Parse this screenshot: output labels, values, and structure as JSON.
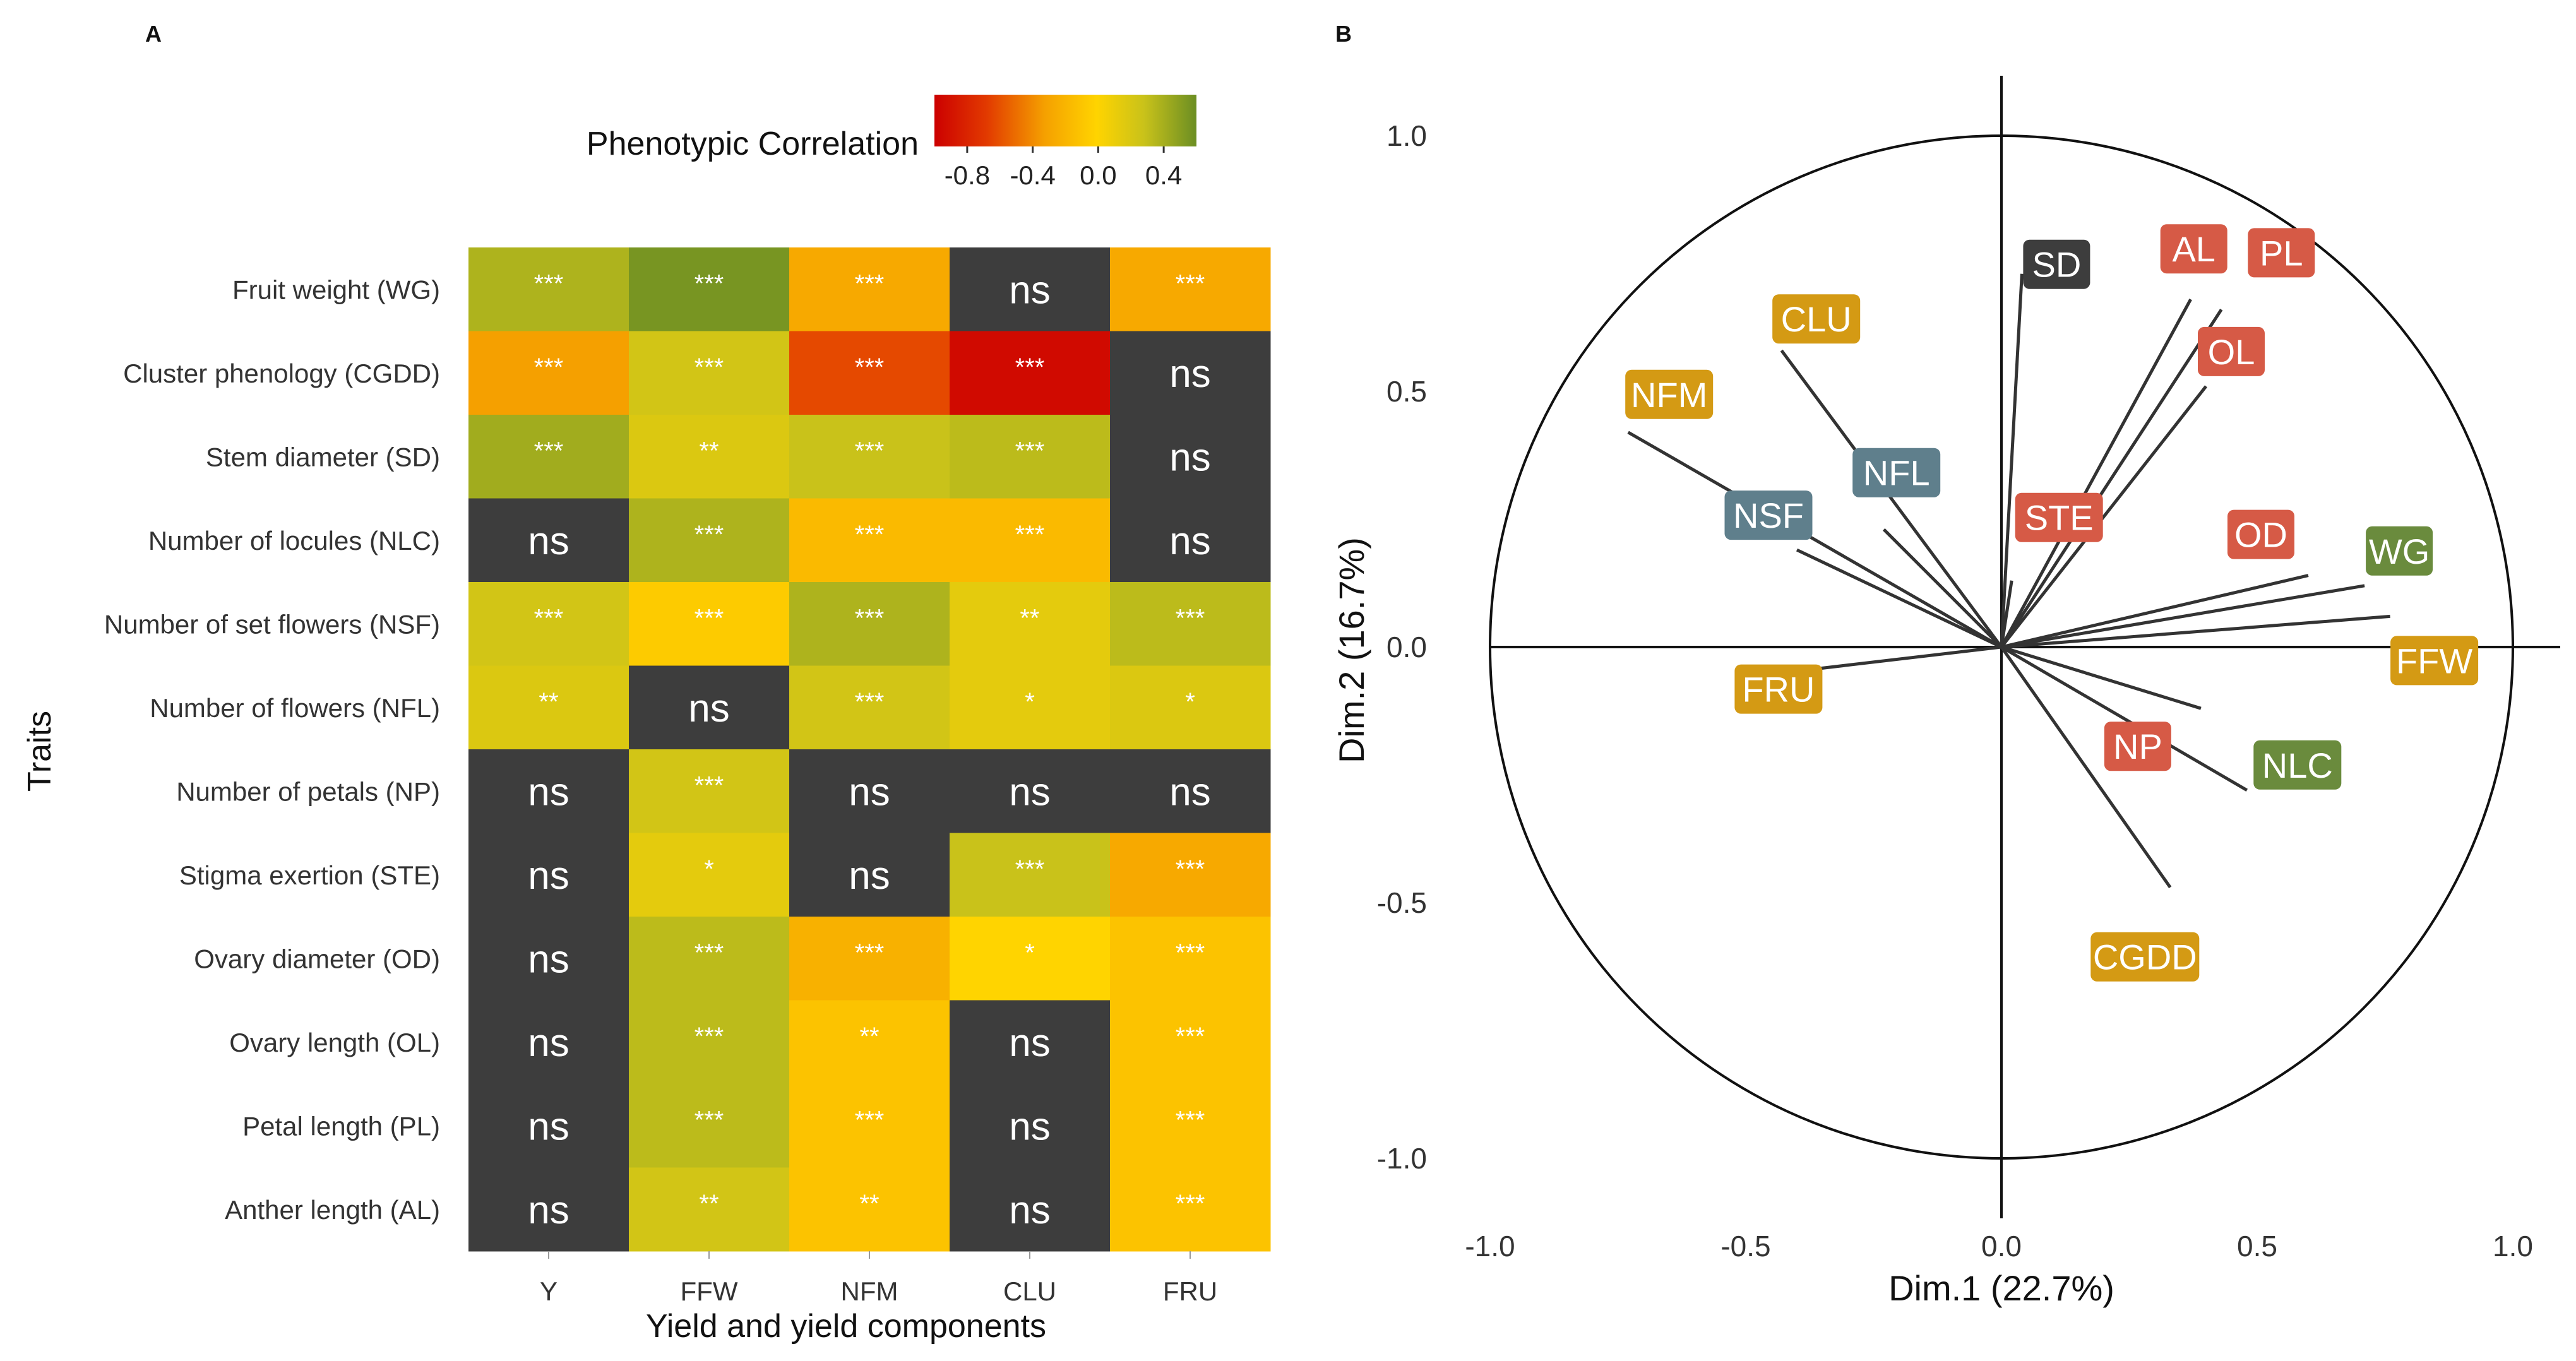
{
  "colors": {
    "ns_cell": "#3d3d3d",
    "scale_low": "#cc0000",
    "scale_mid": "#ffd700",
    "scale_high": "#6b8e23",
    "red_group": "#d65a46",
    "gold_group": "#d49a14",
    "slate_group": "#5f7f8c",
    "olive_group": "#6a8b3d",
    "dark_group": "#3d3d3d"
  },
  "chart_data": [
    {
      "type": "heatmap",
      "panel_label": "A",
      "title": "Phenotypic Correlation",
      "xlabel": "Yield and yield components",
      "ylabel": "Traits",
      "legend": {
        "title": "Phenotypic Correlation",
        "ticks": [
          "-0.8",
          "-0.4",
          "0.0",
          "0.4"
        ],
        "range": [
          -1.0,
          0.6
        ],
        "position": "top"
      },
      "columns": [
        "Y",
        "FFW",
        "NFM",
        "CLU",
        "FRU"
      ],
      "rows": [
        {
          "label": "Fruit weight (WG)",
          "values": [
            0.35,
            0.55,
            -0.3,
            null,
            -0.3
          ],
          "marks": [
            "***",
            "***",
            "***",
            "ns",
            "***"
          ]
        },
        {
          "label": "Cluster phenology (CGDD)",
          "values": [
            -0.35,
            0.2,
            -0.65,
            -0.95,
            null
          ],
          "marks": [
            "***",
            "***",
            "***",
            "***",
            "ns"
          ]
        },
        {
          "label": "Stem diameter (SD)",
          "values": [
            0.4,
            0.15,
            0.25,
            0.3,
            null
          ],
          "marks": [
            "***",
            "**",
            "***",
            "***",
            "ns"
          ]
        },
        {
          "label": "Number of locules (NLC)",
          "values": [
            null,
            0.35,
            -0.2,
            -0.2,
            null
          ],
          "marks": [
            "ns",
            "***",
            "***",
            "***",
            "ns"
          ]
        },
        {
          "label": "Number of set flowers (NSF)",
          "values": [
            0.2,
            -0.1,
            0.35,
            0.1,
            0.3
          ],
          "marks": [
            "***",
            "***",
            "***",
            "**",
            "***"
          ]
        },
        {
          "label": "Number of flowers (NFL)",
          "values": [
            0.15,
            null,
            0.2,
            0.1,
            0.15
          ],
          "marks": [
            "**",
            "ns",
            "***",
            "*",
            "*"
          ]
        },
        {
          "label": "Number of petals (NP)",
          "values": [
            null,
            0.2,
            null,
            null,
            null
          ],
          "marks": [
            "ns",
            "***",
            "ns",
            "ns",
            "ns"
          ]
        },
        {
          "label": "Stigma exertion (STE)",
          "values": [
            null,
            0.1,
            null,
            0.25,
            -0.3
          ],
          "marks": [
            "ns",
            "*",
            "ns",
            "***",
            "***"
          ]
        },
        {
          "label": "Ovary diameter (OD)",
          "values": [
            null,
            0.3,
            -0.25,
            -0.05,
            -0.15
          ],
          "marks": [
            "ns",
            "***",
            "***",
            "*",
            "***"
          ]
        },
        {
          "label": "Ovary length (OL)",
          "values": [
            null,
            0.3,
            -0.15,
            null,
            -0.15
          ],
          "marks": [
            "ns",
            "***",
            "**",
            "ns",
            "***"
          ]
        },
        {
          "label": "Petal length (PL)",
          "values": [
            null,
            0.3,
            -0.15,
            null,
            -0.15
          ],
          "marks": [
            "ns",
            "***",
            "***",
            "ns",
            "***"
          ]
        },
        {
          "label": "Anther length (AL)",
          "values": [
            null,
            0.2,
            -0.15,
            null,
            -0.15
          ],
          "marks": [
            "ns",
            "**",
            "**",
            "ns",
            "***"
          ]
        }
      ]
    },
    {
      "type": "scatter",
      "subtype": "pca-correlation-circle",
      "panel_label": "B",
      "xlabel": "Dim.1 (22.7%)",
      "ylabel": "Dim.2 (16.7%)",
      "xlim": [
        -1.0,
        1.0
      ],
      "ylim": [
        -1.0,
        1.0
      ],
      "x_ticks": [
        "-1.0",
        "-0.5",
        "0.0",
        "0.5",
        "1.0"
      ],
      "y_ticks": [
        "1.0",
        "0.5",
        "0.0",
        "-0.5",
        "-1.0"
      ],
      "vectors": [
        {
          "name": "SD",
          "x": 0.04,
          "y": 0.73,
          "group": "dark"
        },
        {
          "name": "AL",
          "x": 0.37,
          "y": 0.68,
          "group": "red"
        },
        {
          "name": "PL",
          "x": 0.43,
          "y": 0.66,
          "group": "red"
        },
        {
          "name": "OL",
          "x": 0.4,
          "y": 0.51,
          "group": "red"
        },
        {
          "name": "OD",
          "x": 0.6,
          "y": 0.14,
          "group": "red"
        },
        {
          "name": "STE",
          "x": 0.02,
          "y": 0.13,
          "group": "red"
        },
        {
          "name": "NP",
          "x": 0.39,
          "y": -0.12,
          "group": "red"
        },
        {
          "name": "WG",
          "x": 0.71,
          "y": 0.12,
          "group": "olive"
        },
        {
          "name": "NLC",
          "x": 0.48,
          "y": -0.28,
          "group": "olive"
        },
        {
          "name": "FFW",
          "x": 0.76,
          "y": 0.06,
          "group": "gold"
        },
        {
          "name": "CGDD",
          "x": 0.33,
          "y": -0.47,
          "group": "gold"
        },
        {
          "name": "CLU",
          "x": -0.43,
          "y": 0.58,
          "group": "gold"
        },
        {
          "name": "NFM",
          "x": -0.73,
          "y": 0.42,
          "group": "gold"
        },
        {
          "name": "FRU",
          "x": -0.51,
          "y": -0.06,
          "group": "gold"
        },
        {
          "name": "NFL",
          "x": -0.23,
          "y": 0.23,
          "group": "slate"
        },
        {
          "name": "NSF",
          "x": -0.4,
          "y": 0.19,
          "group": "slate"
        }
      ]
    }
  ]
}
